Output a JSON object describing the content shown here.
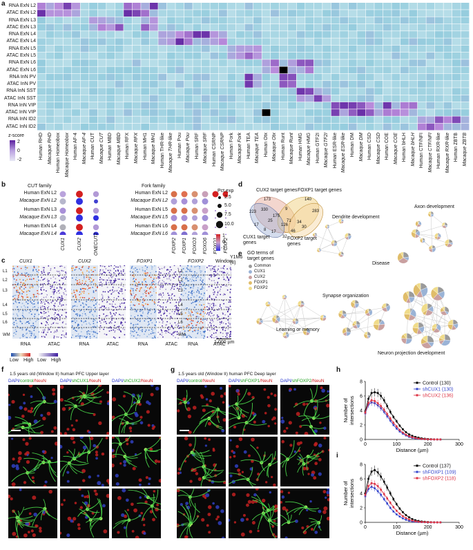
{
  "panel_letters": {
    "a": "a",
    "b": "b",
    "c": "c",
    "d": "d",
    "e": "e",
    "f": "f",
    "g": "g",
    "h": "h",
    "i": "i"
  },
  "heatmap": {
    "row_labels": [
      "RNA ExN L2",
      "ATAC ExN L2",
      "RNA ExN L3",
      "ATAC ExN L3",
      "RNA ExN L4",
      "ATAC ExN L4",
      "RNA ExN L5",
      "ATAC ExN L5",
      "RNA ExN L6",
      "ATAC ExN L6",
      "RNA InN PV",
      "ATAC InN PV",
      "RNA InN SST",
      "ATAC InN SST",
      "RNA InN VIP",
      "ATAC InN VIP",
      "RNA InN ID2",
      "ATAC InN ID2"
    ],
    "col_labels": [
      "Human RHD",
      "Macaque RHD",
      "Human Homeobox",
      "Macaque Homeobox",
      "Human AF-4",
      "Macaque AF-4",
      "Human CUT",
      "Macaque CUT",
      "Human MBD",
      "Macaque MBD",
      "Human RFX",
      "Macaque RFX",
      "Human MH1",
      "Macaque MH1",
      "Human THR-like",
      "Macaque THR-like",
      "Human Pou",
      "Macaque Pou",
      "Human SRF",
      "Macaque SRF",
      "Human CSRNP",
      "Macaque CSRNP",
      "Human Fork",
      "Macaque Fork",
      "Human TEA",
      "Macaque TEA",
      "Human Otx",
      "Macaque Otx",
      "Human Runt",
      "Macaque Runt",
      "Human HMG",
      "Macaque HMG",
      "Human GTF2I",
      "Macaque GTF2I",
      "Human ESR-like",
      "Macaque ESR-like",
      "Human DM",
      "Macaque DM",
      "Human CSD",
      "Macaque CSD",
      "Human COE",
      "Macaque COE",
      "Human bHLH",
      "Macaque bHLH",
      "Human CTF/NFI",
      "Macaque CTF/NFI",
      "Human RXR-like",
      "Macaque RXR-like",
      "Human ZBTB",
      "Macaque ZBTB"
    ],
    "legend_title": "z-score",
    "legend_ticks": [
      "2",
      "0",
      "-2"
    ],
    "colors": {
      "low": "#d8eef2",
      "mid": "#9dd3e0",
      "high": "#5a1e9e",
      "max": "#000000"
    }
  },
  "dotplot": {
    "cut_title": "CUT family",
    "fork_title": "Fork family",
    "cut_rows": [
      "Human ExN L2",
      "Macaque ExN L2",
      "Human ExN L3",
      "Macaque ExN L3",
      "Human ExN L4",
      "Macaque ExN L4"
    ],
    "cut_cols": [
      "CUX1",
      "CUX2",
      "ONECUT2"
    ],
    "fork_rows": [
      "Human ExN L2",
      "Macaque ExN L2",
      "Human ExN L5",
      "Macaque ExN L5",
      "Human ExN L6",
      "Macaque ExN L6"
    ],
    "fork_cols": [
      "FOXP2",
      "FOXP1",
      "FOXO3",
      "FOXO6",
      "FOXO1",
      "FOXF2"
    ],
    "size_title": "Pct.exp",
    "size_ticks": [
      "2.5",
      "5.0",
      "7.5",
      "10.0"
    ],
    "color_ticks": [
      "1",
      "0",
      "-1"
    ]
  },
  "tracks": {
    "genes": [
      "CUX1",
      "CUX2",
      "FOXP1",
      "FOXP2"
    ],
    "window_label": "Window",
    "window_num": "(II)",
    "layers": [
      "L1",
      "L2",
      "L3",
      "L4",
      "L5",
      "L6",
      "WM"
    ],
    "subs": [
      "RNA",
      "ATAC"
    ],
    "low": "Low",
    "high": "High",
    "track_tag": "Y1M6",
    "scale": "1,000 µm"
  },
  "venn": {
    "cux2": "CUX2 target genes",
    "foxp1": "FOXP1 target genes",
    "cux1": "CUX1 target genes",
    "foxp2": "FOXP2 target genes",
    "numbers": [
      "173",
      "140",
      "223",
      "330",
      "9",
      "283",
      "175",
      "25",
      "71",
      "34",
      "126",
      "17",
      "8",
      "17",
      "46",
      "32",
      "30"
    ]
  },
  "network": {
    "legend_title": "GO terms of target genes",
    "legend_items": [
      "Common",
      "CUX1",
      "CUX2",
      "FOXP1",
      "FOXP2"
    ],
    "legend_colors": [
      "#9a9a9a",
      "#9ab3d6",
      "#c9a0a0",
      "#e0bd6a",
      "#f0dc8a"
    ],
    "terms": [
      "Dendrite development",
      "Axon development",
      "Disease",
      "Synapse organization",
      "Learning or memory",
      "Neuron projection development"
    ]
  },
  "micro": {
    "f_header": "1.5 years old  (Window II)  human PFC   Upper layer",
    "g_header": "1.5 years old  (Window II)  human PFC   Deep layer",
    "f_cols": [
      [
        "DAPI/",
        "control",
        "/NeuN"
      ],
      [
        "DAPI/",
        "shCUX1",
        "/NeuN"
      ],
      [
        "DAPI/",
        "shCUX2",
        "/NeuN"
      ]
    ],
    "g_cols": [
      [
        "DAPI/",
        "control",
        "/NeuN"
      ],
      [
        "DAPI/",
        "shFOXP1",
        "/NeuN"
      ],
      [
        "DAPI/",
        "shFOXP2",
        "/NeuN"
      ]
    ]
  },
  "chart_data": [
    {
      "type": "line",
      "panel": "h",
      "xlabel": "Distance (µm)",
      "ylabel": "Number of intersections",
      "xlim": [
        0,
        300
      ],
      "ylim": [
        0,
        8
      ],
      "xticks": [
        "0",
        "100",
        "200",
        "300"
      ],
      "yticks": [
        "0",
        "2",
        "4",
        "6",
        "8"
      ],
      "x": [
        0,
        10,
        20,
        30,
        40,
        50,
        60,
        70,
        80,
        90,
        100,
        110,
        120,
        130,
        140,
        150,
        160,
        170,
        180,
        190,
        200,
        210,
        220,
        230,
        240
      ],
      "series": [
        {
          "name": "Control (130)",
          "color": "#000000",
          "values": [
            3.8,
            5.6,
            6.4,
            6.5,
            6.4,
            6.0,
            5.4,
            4.6,
            3.8,
            3.1,
            2.5,
            1.9,
            1.4,
            1.0,
            0.7,
            0.5,
            0.35,
            0.25,
            0.15,
            0.1,
            0.06,
            0.04,
            0.02,
            0.01,
            0.0
          ]
        },
        {
          "name": "shCUX1 (130)",
          "color": "#3344cc",
          "values": [
            3.6,
            4.8,
            5.1,
            5.0,
            4.7,
            4.3,
            3.8,
            3.2,
            2.6,
            2.0,
            1.5,
            1.1,
            0.8,
            0.55,
            0.35,
            0.22,
            0.14,
            0.08,
            0.05,
            0.03,
            0.02,
            0.01,
            0.0,
            0.0,
            0.0
          ]
        },
        {
          "name": "shCUX2 (136)",
          "color": "#dd3344",
          "values": [
            3.7,
            5.0,
            5.4,
            5.3,
            5.0,
            4.6,
            4.1,
            3.5,
            2.9,
            2.3,
            1.8,
            1.3,
            0.95,
            0.65,
            0.45,
            0.3,
            0.2,
            0.12,
            0.07,
            0.04,
            0.02,
            0.01,
            0.0,
            0.0,
            0.0
          ]
        }
      ]
    },
    {
      "type": "line",
      "panel": "i",
      "xlabel": "Distance (µm)",
      "ylabel": "Number of intersections",
      "xlim": [
        0,
        300
      ],
      "ylim": [
        0,
        8
      ],
      "xticks": [
        "0",
        "100",
        "200",
        "300"
      ],
      "yticks": [
        "0",
        "2",
        "4",
        "6",
        "8"
      ],
      "x": [
        0,
        10,
        20,
        30,
        40,
        50,
        60,
        70,
        80,
        90,
        100,
        110,
        120,
        130,
        140,
        150,
        160,
        170,
        180,
        190,
        200,
        210,
        220,
        230,
        240
      ],
      "series": [
        {
          "name": "Control (137)",
          "color": "#000000",
          "values": [
            4.0,
            6.0,
            7.0,
            7.2,
            6.9,
            6.3,
            5.6,
            4.8,
            4.0,
            3.2,
            2.5,
            1.9,
            1.4,
            1.0,
            0.7,
            0.45,
            0.3,
            0.2,
            0.12,
            0.08,
            0.05,
            0.03,
            0.02,
            0.01,
            0.0
          ]
        },
        {
          "name": "shFOXP1 (109)",
          "color": "#3344cc",
          "values": [
            3.6,
            4.6,
            4.9,
            4.7,
            4.3,
            3.8,
            3.2,
            2.6,
            2.0,
            1.5,
            1.1,
            0.8,
            0.55,
            0.35,
            0.22,
            0.13,
            0.08,
            0.05,
            0.03,
            0.02,
            0.01,
            0.0,
            0.0,
            0.0,
            0.0
          ]
        },
        {
          "name": "shFOXP2 (118)",
          "color": "#dd3344",
          "values": [
            3.8,
            5.0,
            5.4,
            5.3,
            5.0,
            4.5,
            3.9,
            3.3,
            2.7,
            2.1,
            1.6,
            1.2,
            0.85,
            0.6,
            0.4,
            0.25,
            0.15,
            0.09,
            0.05,
            0.03,
            0.02,
            0.01,
            0.0,
            0.0,
            0.0
          ]
        }
      ]
    }
  ]
}
